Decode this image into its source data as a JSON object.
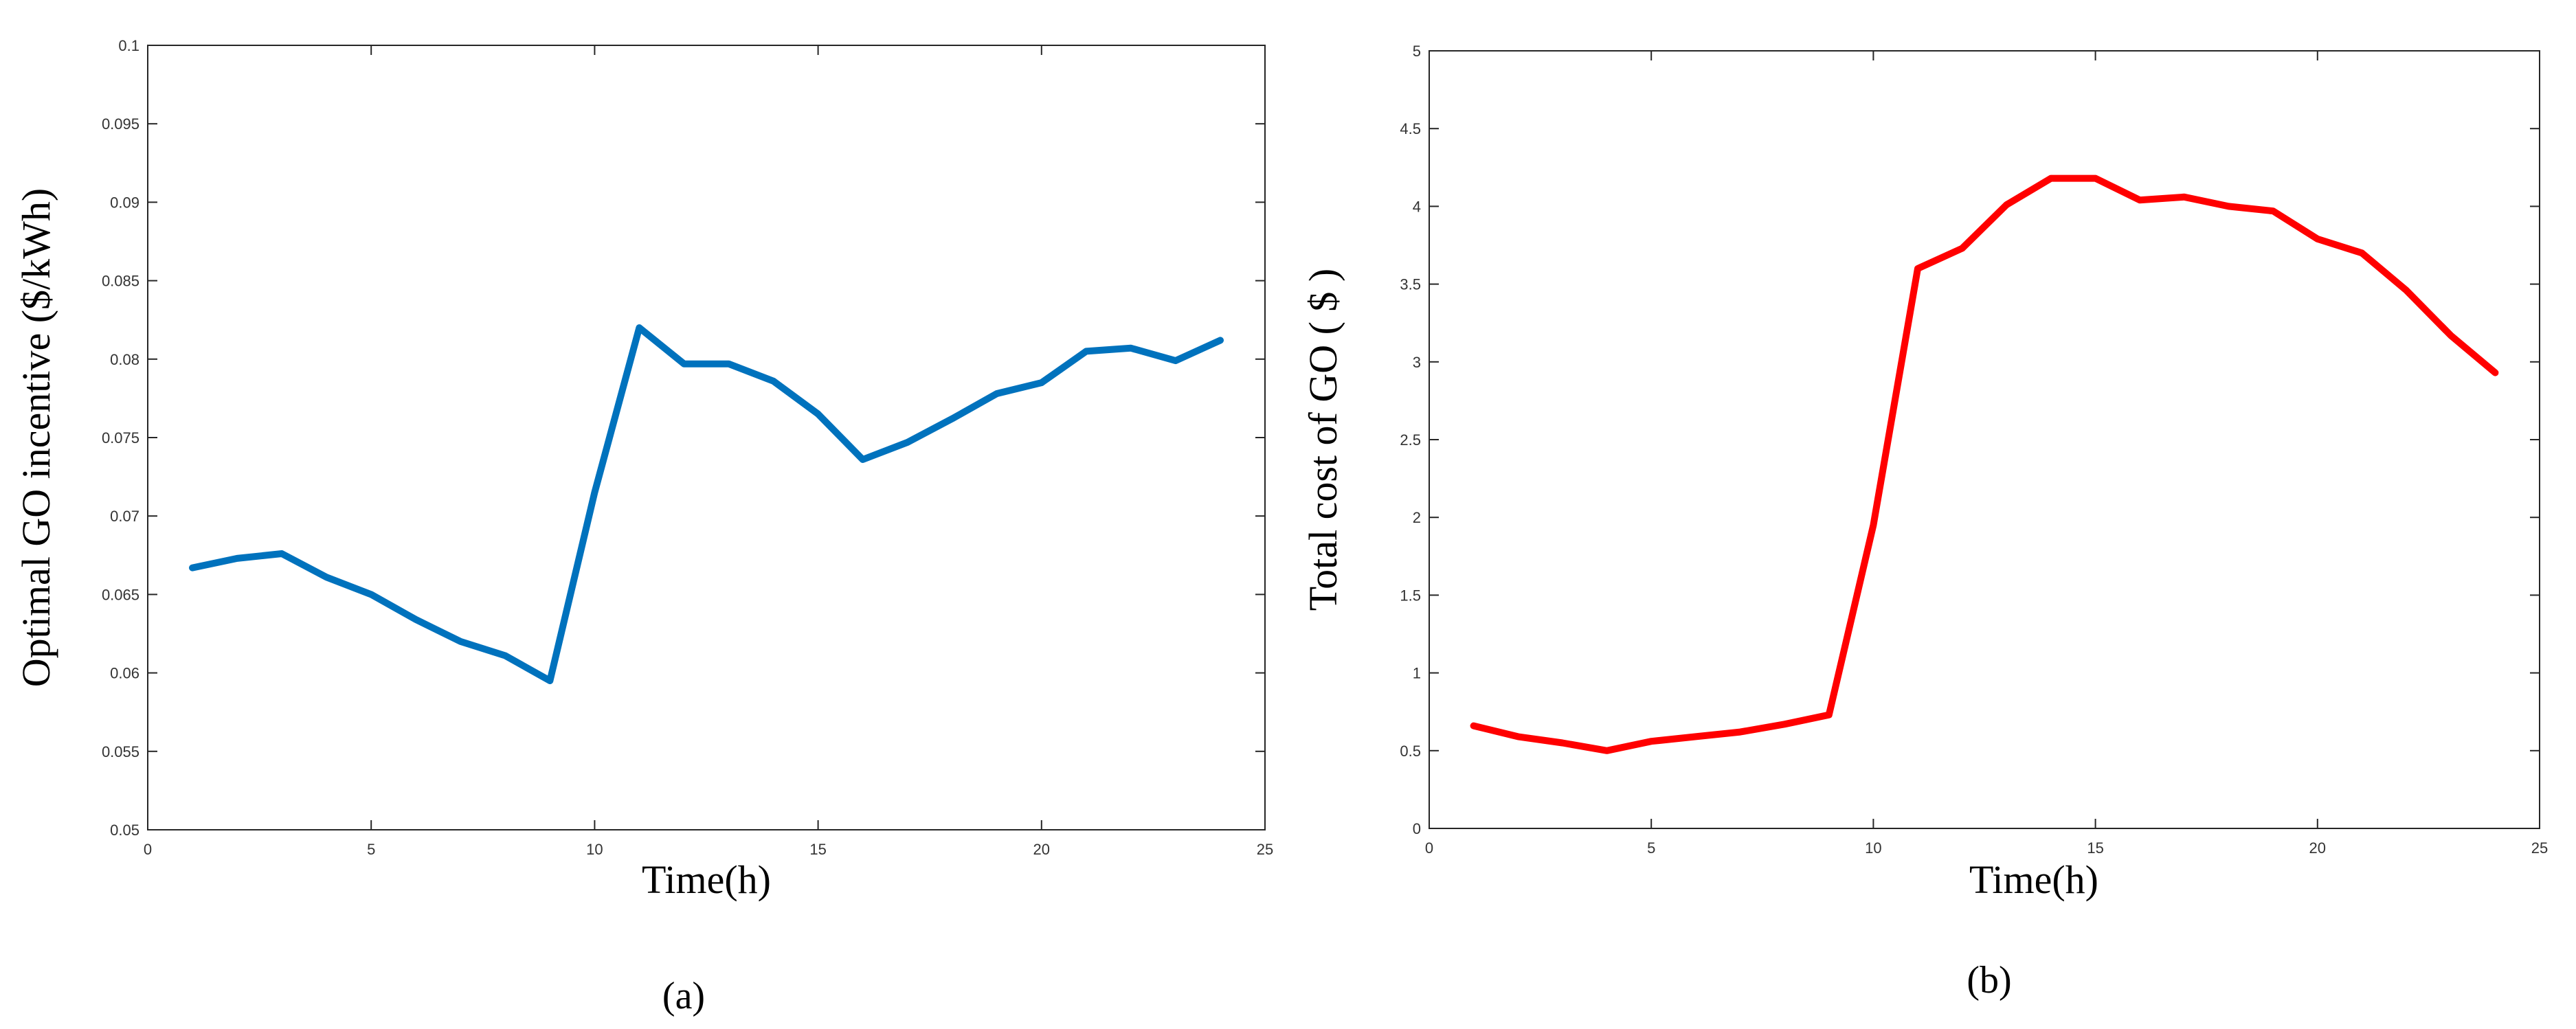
{
  "chart_data": [
    {
      "type": "line",
      "panel_label": "(a)",
      "xlabel": "Time(h)",
      "ylabel": "Optimal GO incentive ($/kWh)",
      "xlim": [
        0,
        25
      ],
      "ylim": [
        0.05,
        0.1
      ],
      "xticks": [
        "0",
        "5",
        "10",
        "15",
        "20",
        "25"
      ],
      "yticks": [
        "0.05",
        "0.055",
        "0.06",
        "0.065",
        "0.07",
        "0.075",
        "0.08",
        "0.085",
        "0.09",
        "0.095",
        "0.1"
      ],
      "grid": false,
      "color": "#0072BD",
      "series": [
        {
          "x": [
            1,
            2,
            3,
            4,
            5,
            6,
            7,
            8,
            9,
            10,
            11,
            12,
            13,
            14,
            15,
            16,
            17,
            18,
            19,
            20,
            21,
            22,
            23,
            24
          ],
          "values": [
            0.0667,
            0.0673,
            0.0676,
            0.0661,
            0.065,
            0.0634,
            0.062,
            0.0611,
            0.0595,
            0.0715,
            0.082,
            0.0797,
            0.0797,
            0.0786,
            0.0765,
            0.0736,
            0.0747,
            0.0762,
            0.0778,
            0.0785,
            0.0805,
            0.0807,
            0.0799,
            0.0812
          ]
        }
      ]
    },
    {
      "type": "line",
      "panel_label": "(b)",
      "xlabel": "Time(h)",
      "ylabel": "Total cost of GO ( $ )",
      "xlim": [
        0,
        25
      ],
      "ylim": [
        0,
        5
      ],
      "xticks": [
        "0",
        "5",
        "10",
        "15",
        "20",
        "25"
      ],
      "yticks": [
        "0",
        "0.5",
        "1",
        "1.5",
        "2",
        "2.5",
        "3",
        "3.5",
        "4",
        "4.5",
        "5"
      ],
      "grid": false,
      "color": "#FF0000",
      "series": [
        {
          "x": [
            1,
            2,
            3,
            4,
            5,
            6,
            7,
            8,
            9,
            10,
            11,
            12,
            13,
            14,
            15,
            16,
            17,
            18,
            19,
            20,
            21,
            22,
            23,
            24
          ],
          "values": [
            0.66,
            0.59,
            0.55,
            0.5,
            0.56,
            0.59,
            0.62,
            0.67,
            0.73,
            1.95,
            3.6,
            3.73,
            4.01,
            4.18,
            4.18,
            4.04,
            4.06,
            4.0,
            3.97,
            3.79,
            3.7,
            3.46,
            3.17,
            2.93
          ]
        }
      ]
    }
  ]
}
